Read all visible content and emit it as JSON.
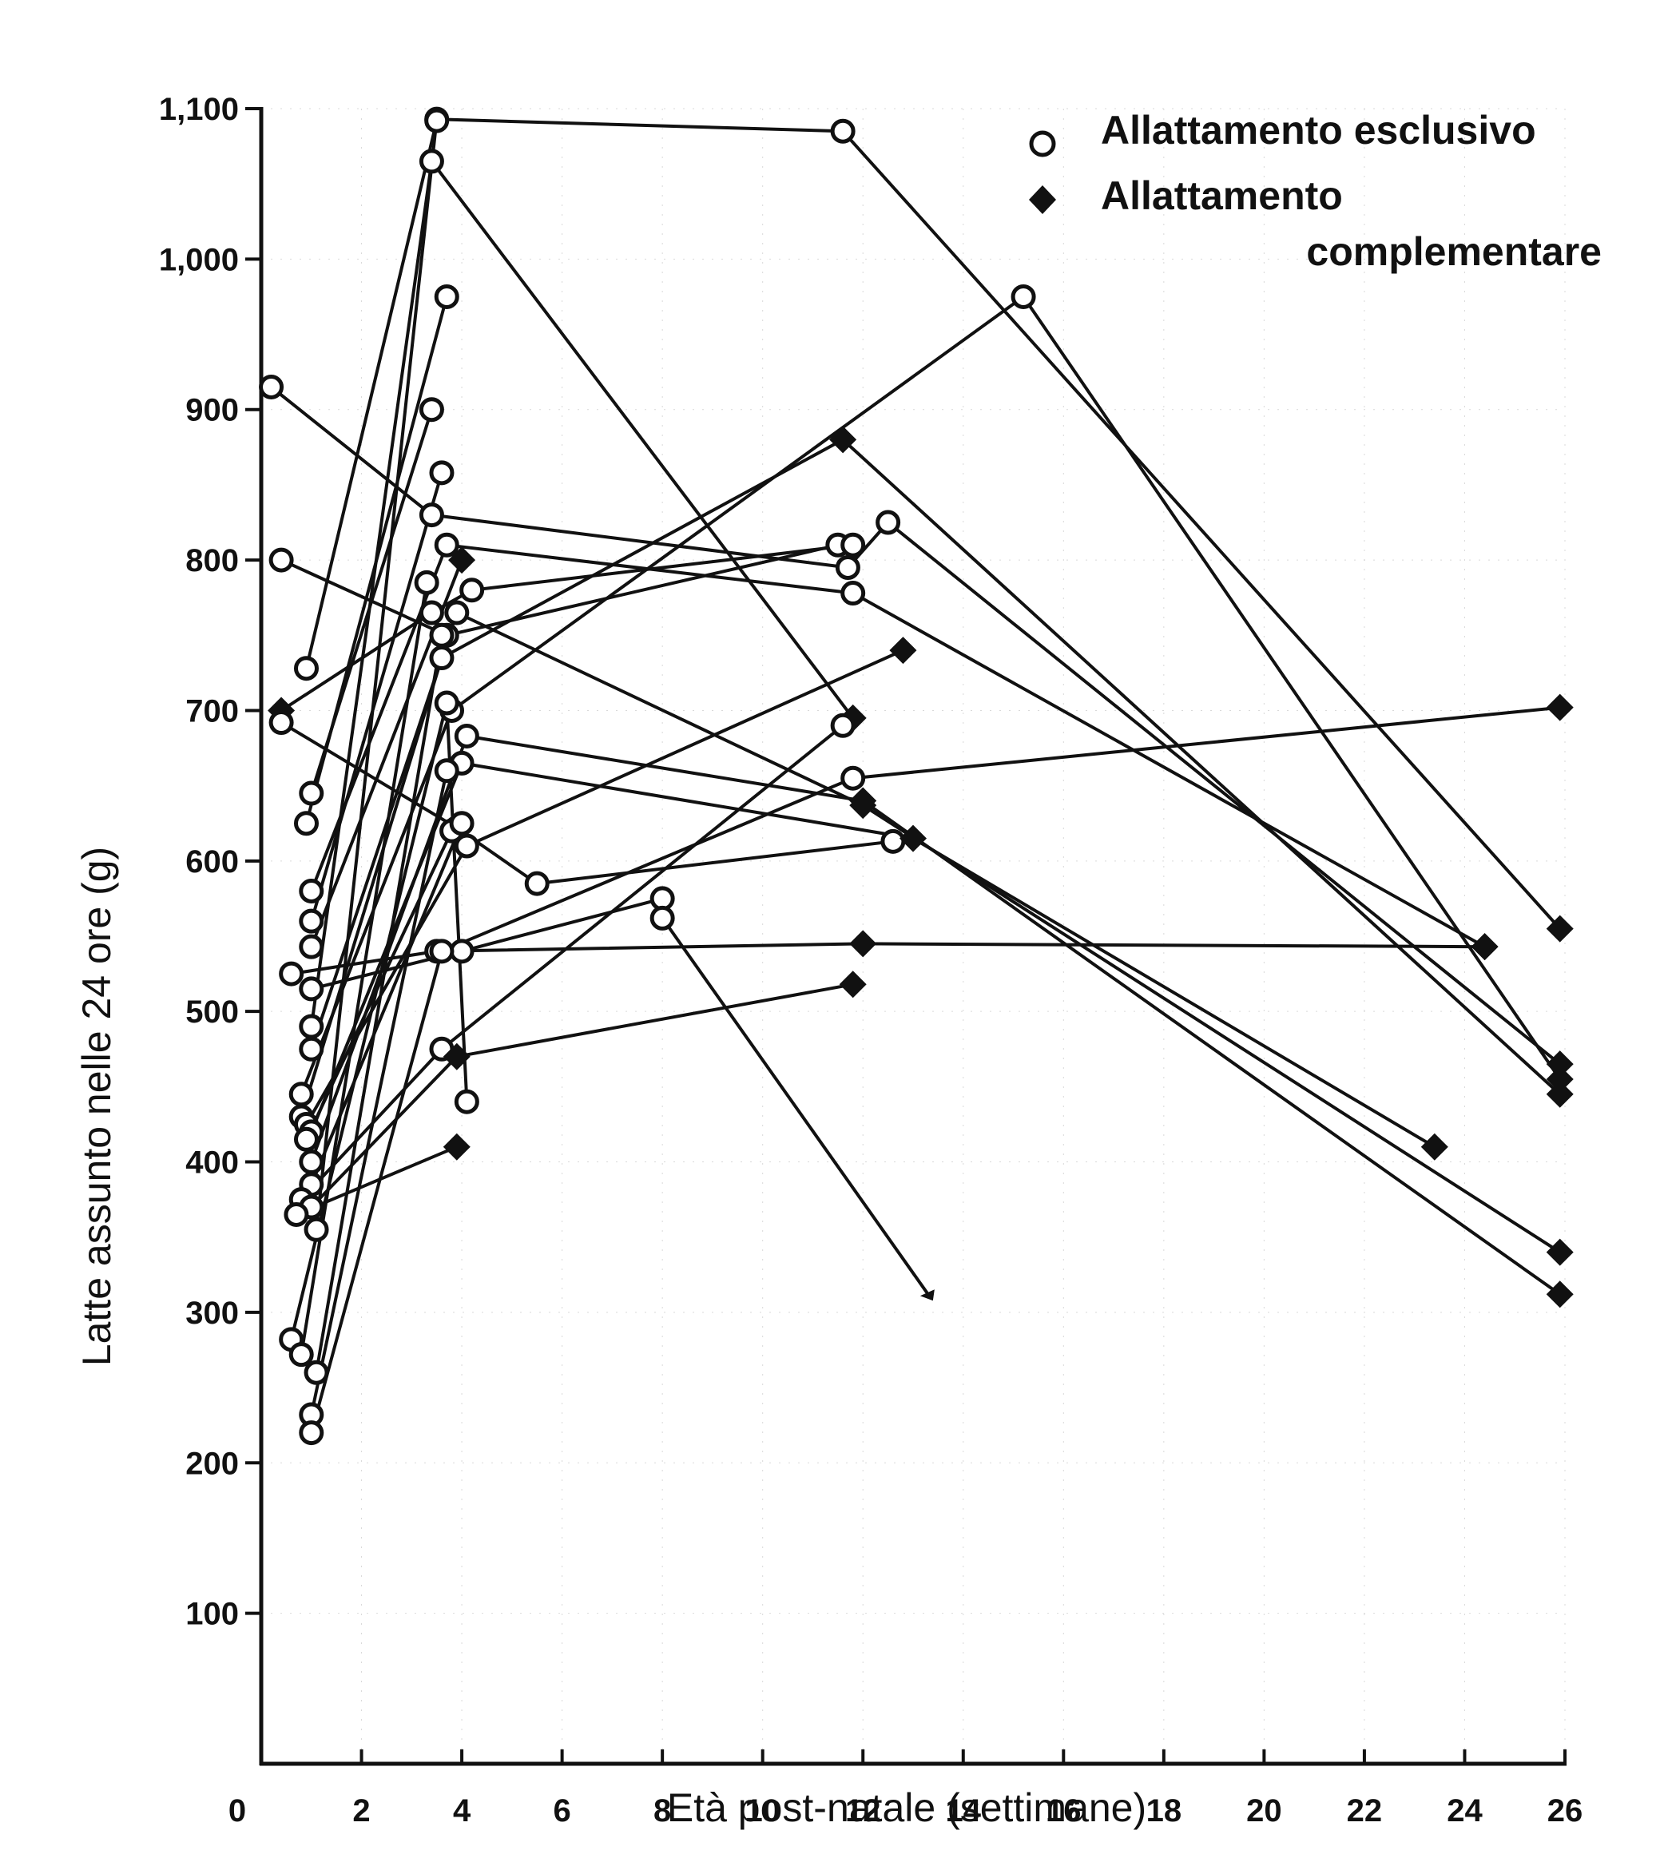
{
  "chart_data": {
    "type": "scatter",
    "title": "",
    "xlabel": "Età post-natale (settimane)",
    "ylabel": "Latte assunto nelle 24 ore (g)",
    "xlim": [
      0,
      26
    ],
    "ylim": [
      0,
      1100
    ],
    "x_ticks": [
      0,
      2,
      4,
      6,
      8,
      10,
      12,
      14,
      16,
      18,
      20,
      22,
      24,
      26
    ],
    "x_tick_labels": [
      "0",
      "2",
      "4",
      "6",
      "8",
      "10",
      "12",
      "14",
      "16",
      "18",
      "20",
      "22",
      "24",
      "26"
    ],
    "y_ticks": [
      100,
      200,
      300,
      400,
      500,
      600,
      700,
      800,
      900,
      1000,
      1100
    ],
    "y_tick_labels": [
      "100",
      "200",
      "300",
      "400",
      "500",
      "600",
      "700",
      "800",
      "900",
      "1,000",
      "1,100"
    ],
    "legend_position": "top-right",
    "legend": {
      "exclusive": "Allattamento esclusivo",
      "complementary_line1": "Allattamento",
      "complementary_line2": "complementare"
    },
    "series": [
      {
        "name": "s1",
        "points": [
          [
            1.0,
            490
          ],
          [
            3.4,
            1065
          ],
          [
            11.8,
            695
          ]
        ],
        "markers": [
          "o",
          "o",
          "d"
        ]
      },
      {
        "name": "s2",
        "points": [
          [
            1.1,
            355
          ],
          [
            3.5,
            1093
          ],
          [
            11.6,
            1085
          ],
          [
            25.9,
            555
          ]
        ],
        "markers": [
          "o",
          "o",
          "o",
          "d"
        ]
      },
      {
        "name": "s3",
        "points": [
          [
            0.9,
            728
          ],
          [
            3.5,
            1092
          ]
        ],
        "markers": [
          "o",
          "o"
        ]
      },
      {
        "name": "s4",
        "points": [
          [
            0.9,
            625
          ],
          [
            3.7,
            975
          ]
        ],
        "markers": [
          "o",
          "o"
        ]
      },
      {
        "name": "s5",
        "points": [
          [
            1.0,
            645
          ],
          [
            3.4,
            900
          ]
        ],
        "markers": [
          "o",
          "o"
        ]
      },
      {
        "name": "s6",
        "points": [
          [
            0.2,
            915
          ],
          [
            3.4,
            830
          ],
          [
            11.7,
            795
          ],
          [
            12.5,
            825
          ],
          [
            25.9,
            465
          ]
        ],
        "markers": [
          "o",
          "o",
          "o",
          "o",
          "d"
        ]
      },
      {
        "name": "s7",
        "points": [
          [
            0.4,
            800
          ],
          [
            3.7,
            750
          ],
          [
            11.5,
            810
          ]
        ],
        "markers": [
          "o",
          "o",
          "o"
        ]
      },
      {
        "name": "s8",
        "points": [
          [
            0.4,
            700
          ],
          [
            3.4,
            765
          ],
          [
            4.2,
            780
          ],
          [
            11.8,
            810
          ]
        ],
        "markers": [
          "d",
          "o",
          "o",
          "o"
        ]
      },
      {
        "name": "s9",
        "points": [
          [
            0.4,
            692
          ],
          [
            3.9,
            622
          ],
          [
            5.5,
            585
          ],
          [
            12.6,
            613
          ]
        ],
        "markers": [
          "o",
          "o",
          "o",
          "o"
        ]
      },
      {
        "name": "s10",
        "points": [
          [
            1.0,
            580
          ],
          [
            3.7,
            810
          ],
          [
            11.8,
            778
          ],
          [
            24.4,
            543
          ]
        ],
        "markers": [
          "o",
          "o",
          "o",
          "d"
        ]
      },
      {
        "name": "s11",
        "points": [
          [
            1.0,
            560
          ],
          [
            3.6,
            858
          ]
        ],
        "markers": [
          "o",
          "o"
        ]
      },
      {
        "name": "s12",
        "points": [
          [
            0.6,
            525
          ],
          [
            3.5,
            540
          ],
          [
            12.0,
            545
          ],
          [
            24.4,
            543
          ]
        ],
        "markers": [
          "o",
          "o",
          "d",
          "d"
        ]
      },
      {
        "name": "s13",
        "points": [
          [
            1.0,
            543
          ],
          [
            4.0,
            800
          ]
        ],
        "markers": [
          "o",
          "d"
        ]
      },
      {
        "name": "s14",
        "points": [
          [
            1.0,
            515
          ],
          [
            4.0,
            540
          ],
          [
            8.0,
            575
          ]
        ],
        "markers": [
          "o",
          "o",
          "o"
        ]
      },
      {
        "name": "s15",
        "points": [
          [
            1.0,
            475
          ],
          [
            3.9,
            765
          ],
          [
            12.0,
            637
          ],
          [
            25.9,
            340
          ]
        ],
        "markers": [
          "o",
          "o",
          "d",
          "d"
        ]
      },
      {
        "name": "s16",
        "points": [
          [
            0.8,
            445
          ],
          [
            3.8,
            700
          ],
          [
            15.2,
            975
          ],
          [
            25.9,
            455
          ]
        ],
        "markers": [
          "o",
          "o",
          "o",
          "d"
        ]
      },
      {
        "name": "s17",
        "points": [
          [
            0.8,
            430
          ],
          [
            3.6,
            735
          ],
          [
            11.6,
            880
          ],
          [
            25.9,
            445
          ]
        ],
        "markers": [
          "o",
          "o",
          "d",
          "d"
        ]
      },
      {
        "name": "s18",
        "points": [
          [
            0.9,
            425
          ],
          [
            4.1,
            610
          ],
          [
            12.8,
            740
          ]
        ],
        "markers": [
          "o",
          "o",
          "d"
        ]
      },
      {
        "name": "s19",
        "points": [
          [
            1.0,
            420
          ],
          [
            4.0,
            665
          ],
          [
            13.0,
            615
          ],
          [
            23.4,
            410
          ]
        ],
        "markers": [
          "o",
          "o",
          "d",
          "d"
        ]
      },
      {
        "name": "s20",
        "points": [
          [
            0.9,
            415
          ],
          [
            3.8,
            620
          ]
        ],
        "markers": [
          "o",
          "o"
        ]
      },
      {
        "name": "s21",
        "points": [
          [
            1.0,
            400
          ],
          [
            4.1,
            683
          ],
          [
            12.0,
            640
          ],
          [
            25.9,
            312
          ]
        ],
        "markers": [
          "o",
          "o",
          "d",
          "d"
        ]
      },
      {
        "name": "s22",
        "points": [
          [
            1.0,
            385
          ],
          [
            4.0,
            625
          ]
        ],
        "markers": [
          "o",
          "o"
        ]
      },
      {
        "name": "s23",
        "points": [
          [
            0.8,
            375
          ],
          [
            3.6,
            475
          ],
          [
            11.6,
            690
          ]
        ],
        "markers": [
          "o",
          "o",
          "o"
        ]
      },
      {
        "name": "s24",
        "points": [
          [
            1.0,
            370
          ],
          [
            3.9,
            470
          ],
          [
            11.8,
            518
          ]
        ],
        "markers": [
          "o",
          "d",
          "d"
        ]
      },
      {
        "name": "s25",
        "points": [
          [
            0.7,
            365
          ],
          [
            3.9,
            410
          ]
        ],
        "markers": [
          "o",
          "d"
        ]
      },
      {
        "name": "s26",
        "points": [
          [
            0.6,
            282
          ],
          [
            3.7,
            705
          ],
          [
            4.1,
            440
          ]
        ],
        "markers": [
          "o",
          "o",
          "o"
        ]
      },
      {
        "name": "s27",
        "points": [
          [
            0.8,
            272
          ],
          [
            3.3,
            785
          ]
        ],
        "markers": [
          "o",
          "o"
        ]
      },
      {
        "name": "s28",
        "points": [
          [
            1.1,
            260
          ],
          [
            3.6,
            750
          ]
        ],
        "markers": [
          "o",
          "o"
        ]
      },
      {
        "name": "s29",
        "points": [
          [
            1.0,
            232
          ],
          [
            3.7,
            660
          ]
        ],
        "markers": [
          "o",
          "o"
        ]
      },
      {
        "name": "s30",
        "points": [
          [
            1.0,
            220
          ],
          [
            3.6,
            540
          ],
          [
            11.8,
            655
          ],
          [
            25.9,
            702
          ]
        ],
        "markers": [
          "o",
          "o",
          "o",
          "d"
        ]
      },
      {
        "name": "s31",
        "points": [
          [
            8.0,
            562
          ],
          [
            13.3,
            312
          ]
        ],
        "markers": [
          "o",
          "none"
        ]
      }
    ]
  }
}
